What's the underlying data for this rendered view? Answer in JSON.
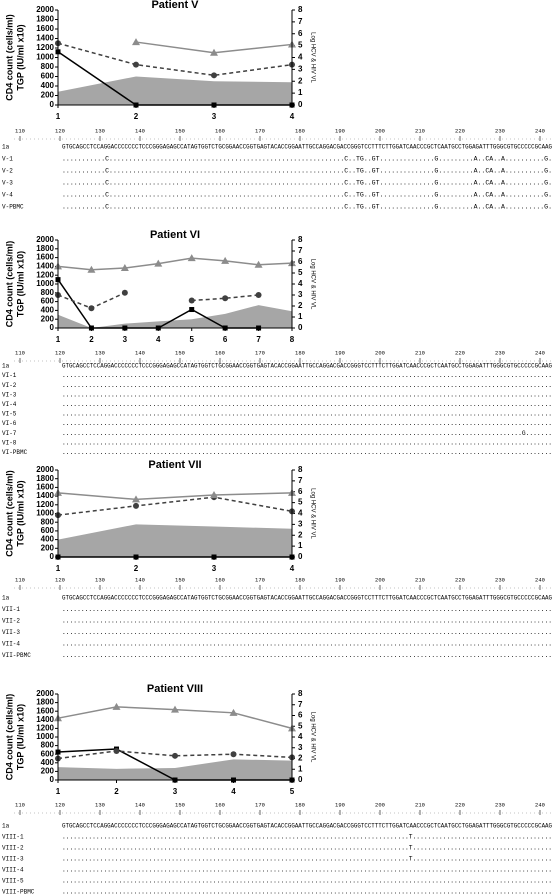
{
  "chart_data": [
    {
      "type": "line",
      "title": "Patient V",
      "y_label": [
        "CD4 count (cells/ml)",
        "TGP (IU/ml  x10)"
      ],
      "y2_label": "Log HCV & HIV VL",
      "x": [
        1,
        2,
        3,
        4
      ],
      "xlim": [
        1,
        4
      ],
      "xticks": [
        1,
        2,
        3,
        4
      ],
      "ylim": [
        0,
        2000
      ],
      "yticks": [
        0,
        200,
        400,
        600,
        800,
        1000,
        1200,
        1400,
        1600,
        1800,
        2000
      ],
      "y2lim": [
        0,
        8
      ],
      "y2ticks": [
        0,
        1,
        2,
        3,
        4,
        5,
        6,
        7,
        8
      ],
      "series": [
        {
          "type": "area",
          "color": "#a6a6a6",
          "values": [
            280,
            600,
            500,
            480
          ]
        },
        {
          "color": "#000000",
          "marker": "square",
          "values": [
            1120,
            0,
            0,
            0
          ]
        },
        {
          "color": "#404040",
          "marker": "circle",
          "dash": true,
          "axis": "y2",
          "values": [
            5.2,
            3.4,
            2.5,
            3.4
          ]
        },
        {
          "color": "#8c8c8c",
          "marker": "triangle",
          "axis": "y2",
          "values": [
            null,
            5.3,
            4.4,
            5.1
          ]
        }
      ]
    },
    {
      "type": "line",
      "title": "Patient VI",
      "y_label": [
        "CD4 count (cells/ml)",
        "TGP (IU/ml  x10)"
      ],
      "y2_label": "Log HCV & HIV VL",
      "x": [
        1,
        2,
        3,
        4,
        5,
        6,
        7,
        8
      ],
      "xlim": [
        1,
        8
      ],
      "xticks": [
        1,
        2,
        3,
        4,
        5,
        6,
        7,
        8
      ],
      "ylim": [
        0,
        2000
      ],
      "yticks": [
        0,
        200,
        400,
        600,
        800,
        1000,
        1200,
        1400,
        1600,
        1800,
        2000
      ],
      "y2lim": [
        0,
        8
      ],
      "y2ticks": [
        0,
        1,
        2,
        3,
        4,
        5,
        6,
        7,
        8
      ],
      "series": [
        {
          "type": "area",
          "color": "#a6a6a6",
          "values": [
            300,
            0,
            100,
            150,
            200,
            320,
            520,
            380
          ]
        },
        {
          "color": "#000000",
          "marker": "square",
          "values": [
            1100,
            0,
            0,
            0,
            420,
            0,
            0,
            null
          ]
        },
        {
          "color": "#404040",
          "marker": "circle",
          "dash": true,
          "axis": "y2",
          "values": [
            3.0,
            1.8,
            3.2,
            null,
            2.5,
            2.7,
            3.0,
            null
          ]
        },
        {
          "color": "#8c8c8c",
          "marker": "triangle",
          "axis": "y2",
          "values": [
            5.6,
            5.3,
            5.45,
            5.85,
            6.35,
            6.1,
            5.75,
            5.9
          ]
        }
      ]
    },
    {
      "type": "line",
      "title": "Patient VII",
      "y_label": [
        "CD4 count (cells/ml)",
        "TGP (IU/ml  x10)"
      ],
      "y2_label": "Log HCV & HIV VL",
      "x": [
        1,
        2,
        3,
        4
      ],
      "xlim": [
        1,
        4
      ],
      "xticks": [
        1,
        2,
        3,
        4
      ],
      "ylim": [
        0,
        2000
      ],
      "yticks": [
        0,
        200,
        400,
        600,
        800,
        1000,
        1200,
        1400,
        1600,
        1800,
        2000
      ],
      "y2lim": [
        0,
        8
      ],
      "y2ticks": [
        0,
        1,
        2,
        3,
        4,
        5,
        6,
        7,
        8
      ],
      "series": [
        {
          "type": "area",
          "color": "#a6a6a6",
          "values": [
            400,
            750,
            700,
            650
          ]
        },
        {
          "color": "#000000",
          "marker": "square",
          "values": [
            0,
            0,
            0,
            0
          ]
        },
        {
          "color": "#404040",
          "marker": "circle",
          "dash": true,
          "axis": "y2",
          "values": [
            3.85,
            4.7,
            5.5,
            4.2
          ]
        },
        {
          "color": "#8c8c8c",
          "marker": "triangle",
          "axis": "y2",
          "values": [
            5.9,
            5.3,
            5.7,
            5.9
          ]
        }
      ]
    },
    {
      "type": "line",
      "title": "Patient VIII",
      "y_label": [
        "CD4 count (cells/ml)",
        "TGP (IU/ml  x10)"
      ],
      "y2_label": "Log HCV & HIV VL",
      "x": [
        1,
        2,
        3,
        4,
        5
      ],
      "xlim": [
        1,
        5
      ],
      "xticks": [
        1,
        2,
        3,
        4,
        5
      ],
      "ylim": [
        0,
        2000
      ],
      "yticks": [
        0,
        200,
        400,
        600,
        800,
        1000,
        1200,
        1400,
        1600,
        1800,
        2000
      ],
      "y2lim": [
        0,
        8
      ],
      "y2ticks": [
        0,
        1,
        2,
        3,
        4,
        5,
        6,
        7,
        8
      ],
      "series": [
        {
          "type": "area",
          "color": "#a6a6a6",
          "values": [
            300,
            260,
            280,
            480,
            450
          ]
        },
        {
          "color": "#000000",
          "marker": "square",
          "values": [
            650,
            720,
            0,
            0,
            0
          ]
        },
        {
          "color": "#404040",
          "marker": "circle",
          "dash": true,
          "axis": "y2",
          "values": [
            2.0,
            2.7,
            2.25,
            2.4,
            2.1
          ]
        },
        {
          "color": "#8c8c8c",
          "marker": "triangle",
          "axis": "y2",
          "values": [
            5.75,
            6.8,
            6.55,
            6.25,
            4.8
          ]
        }
      ]
    }
  ],
  "alignments": [
    {
      "ticks": [
        110,
        120,
        130,
        140,
        150,
        160,
        170,
        180,
        190,
        200,
        210,
        220,
        230,
        240
      ],
      "rows": [
        {
          "label": "1a",
          "seq": "GTGCAGCCTCCAGGACCCCCCCTCCCGGGAGAGCCATAGTGGTCTGCGGAACCGGTGAGTACACCGGAATTGCCAGGACGACCGGGTCCTTTCTTGGATCAACCCGCTCAATGCCTGGAGATTTGGGCGTGCCCCCGCAAG"
        },
        {
          "label": "V-1",
          "seq": "...........C............................................................C..TG..GT..............G.........A..CA..A..........G."
        },
        {
          "label": "V-2",
          "seq": "...........C............................................................C..TG..GT..............G.........A..CA..A..........G."
        },
        {
          "label": "V-3",
          "seq": "...........C............................................................C..TG..GT..............G.........A..CA..A..........G."
        },
        {
          "label": "V-4",
          "seq": "...........C............................................................C..TG..GT..............G.........A..CA..A..........G."
        },
        {
          "label": "V-PBMC",
          "seq": "...........C............................................................C..TG..GT..............G.........A..CA..A..........G."
        }
      ]
    },
    {
      "ticks": [
        110,
        120,
        130,
        140,
        150,
        160,
        170,
        180,
        190,
        200,
        210,
        220,
        230,
        240
      ],
      "rows": [
        {
          "label": "1a",
          "seq": "GTGCAGCCTCCAGGACCCCCCCTCCCGGGAGAGCCATAGTGGTCTGCGGAACCGGTGAGTACACCGGAATTGCCAGGACGACCGGGTCCTTTCTTGGATCAACCCGCTCAATGCCTGGAGATTTGGGCGTGCCCCCGCAAG"
        },
        {
          "label": "VI-1",
          "seq": ".................................................................................................................................."
        },
        {
          "label": "VI-2",
          "seq": ".................................................................................................................................."
        },
        {
          "label": "VI-3",
          "seq": ".................................................................................................................................."
        },
        {
          "label": "VI-4",
          "seq": ".................................................................................................................................."
        },
        {
          "label": "VI-5",
          "seq": ".................................................................................................................................."
        },
        {
          "label": "VI-6",
          "seq": ".................................................................................................................................."
        },
        {
          "label": "VI-7",
          "seq": "..........................................................................................................................G......."
        },
        {
          "label": "VI-8",
          "seq": ".................................................................................................................................."
        },
        {
          "label": "VI-PBMC",
          "seq": ".................................................................................................................................."
        }
      ]
    },
    {
      "ticks": [
        110,
        120,
        130,
        140,
        150,
        160,
        170,
        180,
        190,
        200,
        210,
        220,
        230,
        240
      ],
      "rows": [
        {
          "label": "1a",
          "seq": "GTGCAGCCTCCAGGACCCCCCCTCCCGGGAGAGCCATAGTGGTCTGCGGAACCGGTGAGTACACCGGAATTGCCAGGACGACCGGGTCCTTTCTTGGATCAACCCGCTCAATGCCTGGAGATTTGGGCGTGCCCCCGCAAG"
        },
        {
          "label": "VII-1",
          "seq": ".................................................................................................................................."
        },
        {
          "label": "VII-2",
          "seq": ".................................................................................................................................."
        },
        {
          "label": "VII-3",
          "seq": ".................................................................................................................................."
        },
        {
          "label": "VII-4",
          "seq": ".................................................................................................................................."
        },
        {
          "label": "VII-PBMC",
          "seq": ".................................................................................................................................."
        }
      ]
    },
    {
      "ticks": [
        110,
        120,
        130,
        140,
        150,
        160,
        170,
        180,
        190,
        200,
        210,
        220,
        230,
        240
      ],
      "rows": [
        {
          "label": "1a",
          "seq": "GTGCAGCCTCCAGGACCCCCCCTCCCGGGAGAGCCATAGTGGTCTGCGGAACCGGTGAGTACACCGGAATTGCCAGGACGACCGGGTCCTTTCTTGGATCAACCCGCTCAATGCCTGGAGATTTGGGCGTGCCCCCGCAAG"
        },
        {
          "label": "VIII-1",
          "seq": "............................................................................................T....................................."
        },
        {
          "label": "VIII-2",
          "seq": "............................................................................................T....................................."
        },
        {
          "label": "VIII-3",
          "seq": "............................................................................................T....................................."
        },
        {
          "label": "VIII-4",
          "seq": ".................................................................................................................................."
        },
        {
          "label": "VIII-5",
          "seq": ".................................................................................................................................."
        },
        {
          "label": "VIII-PBMC",
          "seq": ".................................................................................................................................."
        }
      ]
    }
  ]
}
